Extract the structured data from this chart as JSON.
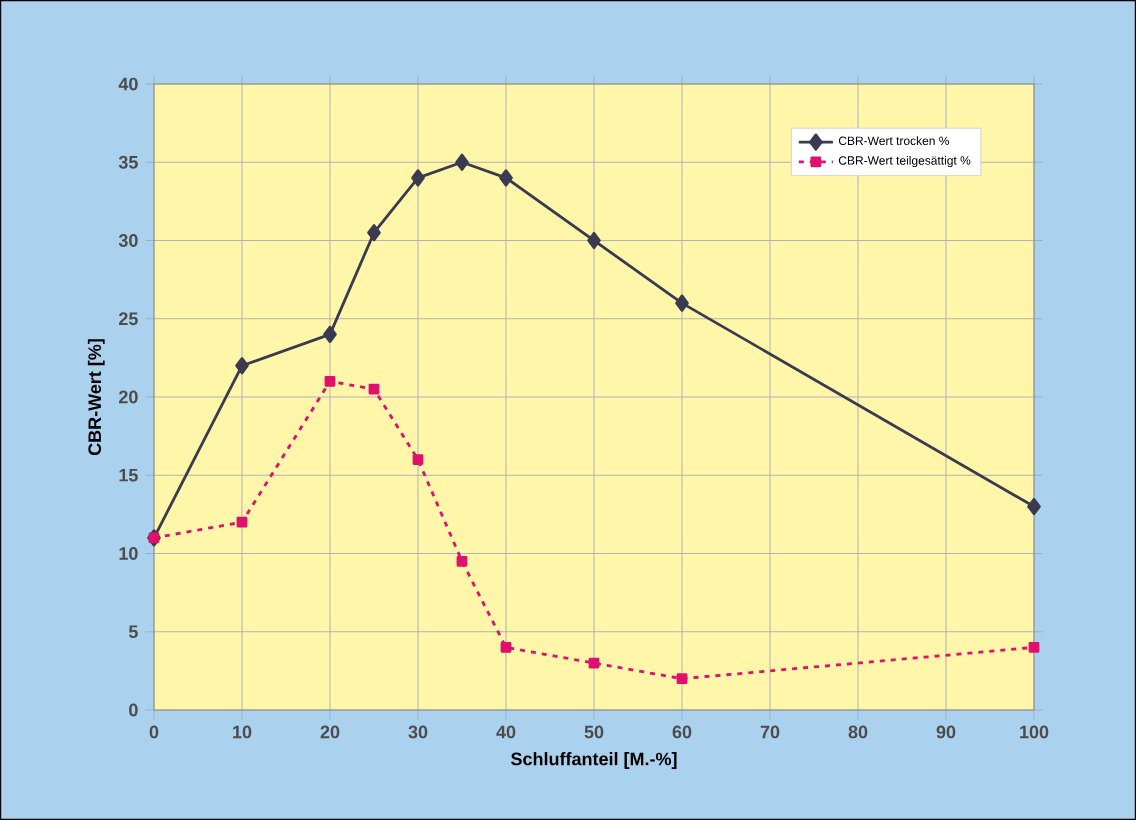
{
  "chart_data": {
    "type": "line",
    "xlabel": "Schluffanteil [M.-%]",
    "ylabel": "CBR-Wert [%]",
    "xlim": [
      0,
      100
    ],
    "xticks": [
      0,
      10,
      20,
      30,
      40,
      50,
      60,
      70,
      80,
      90,
      100
    ],
    "ylim": [
      0,
      40
    ],
    "yticks": [
      0,
      5,
      10,
      15,
      20,
      25,
      30,
      35,
      40
    ],
    "grid": true,
    "legend": "top right",
    "series": [
      {
        "name": "CBR-Wert trocken %",
        "color": "#3a3a50",
        "marker": "diamond",
        "line_style": "solid",
        "x": [
          0,
          10,
          20,
          25,
          30,
          35,
          40,
          50,
          60,
          100
        ],
        "values": [
          11,
          22,
          24,
          30.5,
          34,
          35,
          34,
          30,
          26,
          13
        ]
      },
      {
        "name": "CBR-Wert teilgesättigt %",
        "color": "#e0106e",
        "marker": "square",
        "line_style": "dotted",
        "x": [
          0,
          10,
          20,
          25,
          30,
          35,
          40,
          50,
          60,
          100
        ],
        "values": [
          11,
          12,
          21,
          20.5,
          16,
          9.5,
          4,
          3,
          2,
          4
        ]
      }
    ]
  }
}
